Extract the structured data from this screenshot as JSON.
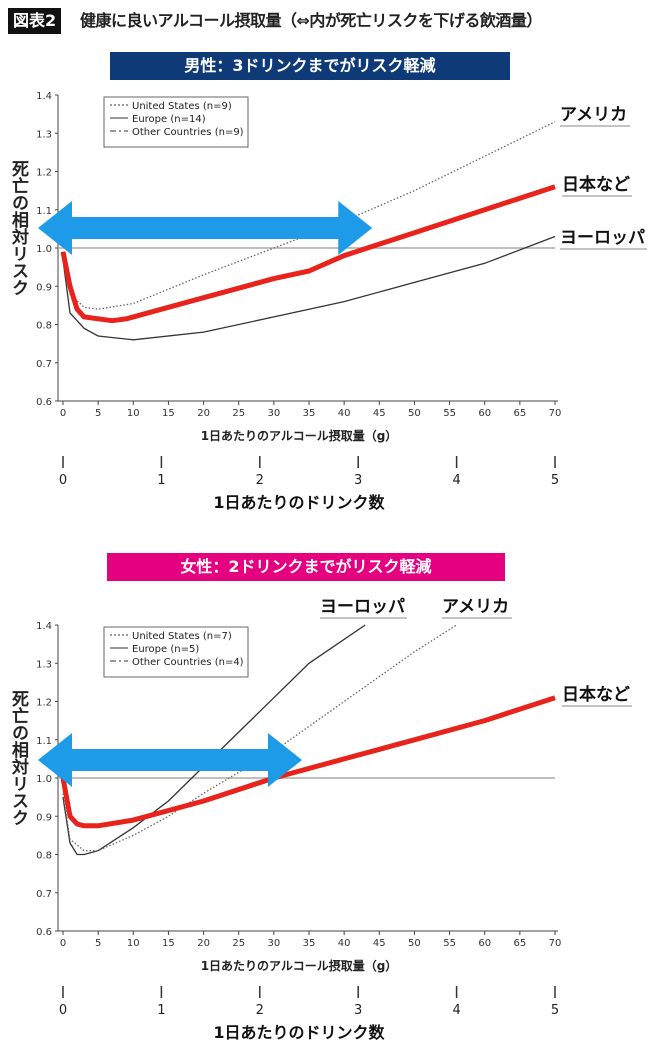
{
  "header": {
    "badge": "図表2",
    "title": "健康に良いアルコール摂取量（⇔内が死亡リスクを下げる飲酒量）"
  },
  "colors": {
    "navy": "#0f3a78",
    "magenta": "#e5007f",
    "red": "#e8231b",
    "arrow": "#1e9be8",
    "grid": "#aaaaaa",
    "line": "#333333"
  },
  "chart_data": [
    {
      "type": "line",
      "title": "男性：3ドリンクまでがリスク軽減",
      "xlabel": "1日あたりのアルコール摂取量（g）",
      "ylabel": "死亡の相対リスク",
      "xlim": [
        0,
        70
      ],
      "ylim": [
        0.6,
        1.4
      ],
      "xticks": [
        0,
        5,
        10,
        15,
        20,
        25,
        30,
        35,
        40,
        45,
        50,
        55,
        60,
        65,
        70
      ],
      "yticks": [
        "0.6",
        "0.7",
        "0.8",
        "0.9",
        "1.0",
        "1.1",
        "1.2",
        "1.3",
        "1.4"
      ],
      "reference_line": 1.0,
      "secondary_axis": {
        "label": "1日あたりのドリンク数",
        "ticks": [
          0,
          1,
          2,
          3,
          4,
          5
        ]
      },
      "arrow_range_g": [
        0,
        44
      ],
      "legend": [
        "United States (n=9)",
        "Europe (n=14)",
        "Other Countries (n=9)"
      ],
      "series": [
        {
          "name": "United States",
          "label": "アメリカ",
          "style": "dotted",
          "points": [
            [
              0,
              0.98
            ],
            [
              1,
              0.88
            ],
            [
              3,
              0.845
            ],
            [
              5,
              0.84
            ],
            [
              10,
              0.855
            ],
            [
              20,
              0.93
            ],
            [
              30,
              1.0
            ],
            [
              40,
              1.07
            ],
            [
              50,
              1.15
            ],
            [
              60,
              1.24
            ],
            [
              70,
              1.33
            ]
          ]
        },
        {
          "name": "Europe",
          "label": "ヨーロッパ",
          "style": "solid",
          "points": [
            [
              0,
              0.97
            ],
            [
              1,
              0.83
            ],
            [
              3,
              0.79
            ],
            [
              5,
              0.77
            ],
            [
              10,
              0.76
            ],
            [
              20,
              0.78
            ],
            [
              30,
              0.82
            ],
            [
              40,
              0.86
            ],
            [
              50,
              0.91
            ],
            [
              60,
              0.96
            ],
            [
              70,
              1.03
            ]
          ]
        },
        {
          "name": "Japan etc.",
          "label": "日本など",
          "style": "red",
          "points": [
            [
              0,
              0.99
            ],
            [
              1,
              0.9
            ],
            [
              2,
              0.84
            ],
            [
              3,
              0.82
            ],
            [
              5,
              0.815
            ],
            [
              7,
              0.81
            ],
            [
              9,
              0.815
            ],
            [
              10,
              0.82
            ],
            [
              20,
              0.87
            ],
            [
              30,
              0.92
            ],
            [
              35,
              0.94
            ],
            [
              40,
              0.98
            ],
            [
              50,
              1.04
            ],
            [
              60,
              1.1
            ],
            [
              70,
              1.16
            ]
          ]
        }
      ]
    },
    {
      "type": "line",
      "title": "女性：2ドリンクまでがリスク軽減",
      "xlabel": "1日あたりのアルコール摂取量（g）",
      "ylabel": "死亡の相対リスク",
      "xlim": [
        0,
        70
      ],
      "ylim": [
        0.6,
        1.4
      ],
      "xticks": [
        0,
        5,
        10,
        15,
        20,
        25,
        30,
        35,
        40,
        45,
        50,
        55,
        60,
        65,
        70
      ],
      "yticks": [
        "0.6",
        "0.7",
        "0.8",
        "0.9",
        "1.0",
        "1.1",
        "1.2",
        "1.3",
        "1.4"
      ],
      "reference_line": 1.0,
      "secondary_axis": {
        "label": "1日あたりのドリンク数",
        "ticks": [
          0,
          1,
          2,
          3,
          4,
          5
        ]
      },
      "arrow_range_g": [
        0,
        34
      ],
      "legend": [
        "United States (n=7)",
        "Europe (n=5)",
        "Other Countries (n=4)"
      ],
      "series": [
        {
          "name": "Europe",
          "label": "ヨーロッパ",
          "style": "solid",
          "points": [
            [
              0,
              0.95
            ],
            [
              1,
              0.83
            ],
            [
              2,
              0.8
            ],
            [
              3,
              0.8
            ],
            [
              5,
              0.81
            ],
            [
              10,
              0.87
            ],
            [
              15,
              0.94
            ],
            [
              20,
              1.03
            ],
            [
              25,
              1.12
            ],
            [
              30,
              1.21
            ],
            [
              35,
              1.3
            ],
            [
              43,
              1.4
            ]
          ]
        },
        {
          "name": "United States",
          "label": "アメリカ",
          "style": "dotted",
          "points": [
            [
              0,
              0.96
            ],
            [
              1,
              0.84
            ],
            [
              3,
              0.81
            ],
            [
              5,
              0.81
            ],
            [
              10,
              0.85
            ],
            [
              15,
              0.9
            ],
            [
              20,
              0.96
            ],
            [
              30,
              1.07
            ],
            [
              40,
              1.2
            ],
            [
              50,
              1.33
            ],
            [
              56,
              1.4
            ]
          ]
        },
        {
          "name": "Japan etc.",
          "label": "日本など",
          "style": "red",
          "points": [
            [
              0,
              1.0
            ],
            [
              1,
              0.9
            ],
            [
              2,
              0.88
            ],
            [
              3,
              0.875
            ],
            [
              5,
              0.875
            ],
            [
              10,
              0.89
            ],
            [
              20,
              0.94
            ],
            [
              30,
              1.0
            ],
            [
              40,
              1.05
            ],
            [
              50,
              1.1
            ],
            [
              60,
              1.15
            ],
            [
              70,
              1.21
            ]
          ]
        }
      ]
    }
  ]
}
